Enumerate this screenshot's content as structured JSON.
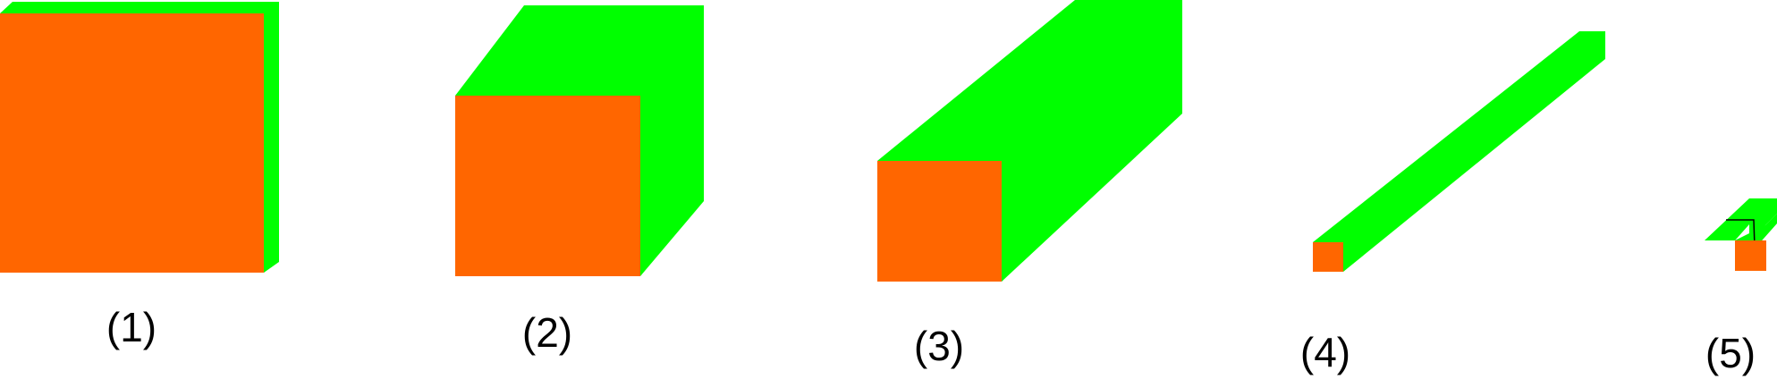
{
  "colors": {
    "front_face": "#ff6600",
    "side_face": "#00ff00",
    "label_text": "#000000",
    "background": "#ffffff"
  },
  "shapes": [
    {
      "id": 1,
      "label": "(1)"
    },
    {
      "id": 2,
      "label": "(2)"
    },
    {
      "id": 3,
      "label": "(3)"
    },
    {
      "id": 4,
      "label": "(4)"
    },
    {
      "id": 5,
      "label": "(5)"
    }
  ]
}
